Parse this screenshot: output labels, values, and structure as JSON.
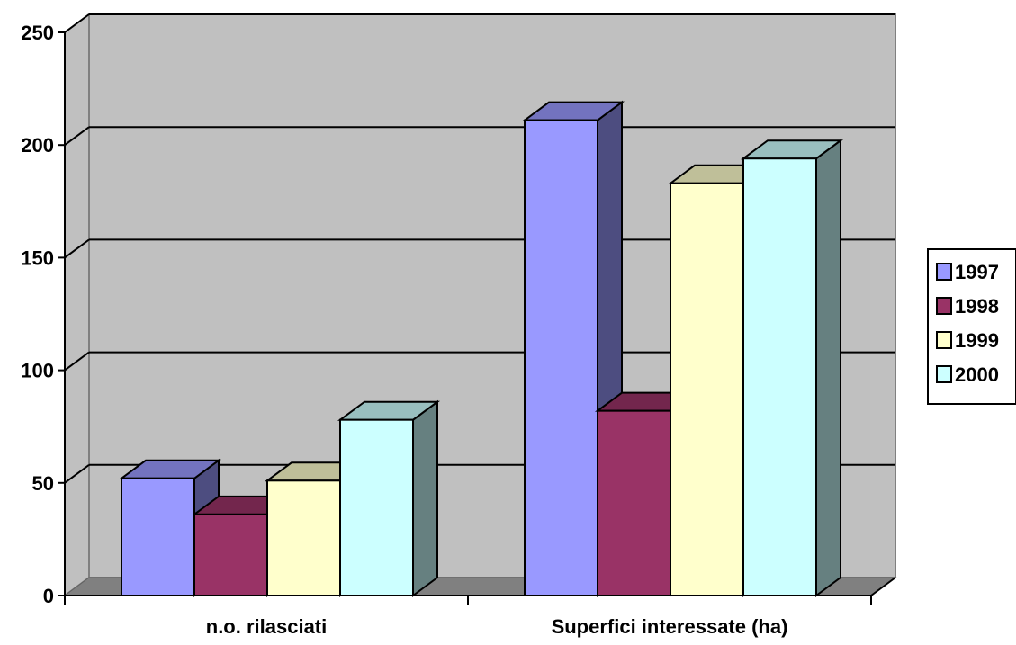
{
  "chart_data": {
    "type": "bar",
    "title": "",
    "xlabel": "",
    "ylabel": "",
    "ylim": [
      0,
      250
    ],
    "yticks": [
      "0",
      "50",
      "100",
      "150",
      "200",
      "250"
    ],
    "categories": [
      "n.o. rilasciati",
      "Superfici interessate (ha)"
    ],
    "series": [
      {
        "name": "1997",
        "values": [
          52,
          211
        ],
        "color": "#9999ff"
      },
      {
        "name": "1998",
        "values": [
          36,
          82
        ],
        "color": "#993366"
      },
      {
        "name": "1999",
        "values": [
          51,
          183
        ],
        "color": "#ffffcc"
      },
      {
        "name": "2000",
        "values": [
          78,
          194
        ],
        "color": "#ccffff"
      }
    ],
    "grid": true,
    "legend_position": "right",
    "three_d": true,
    "wall_color": "#c0c0c0",
    "floor_color": "#808080"
  }
}
